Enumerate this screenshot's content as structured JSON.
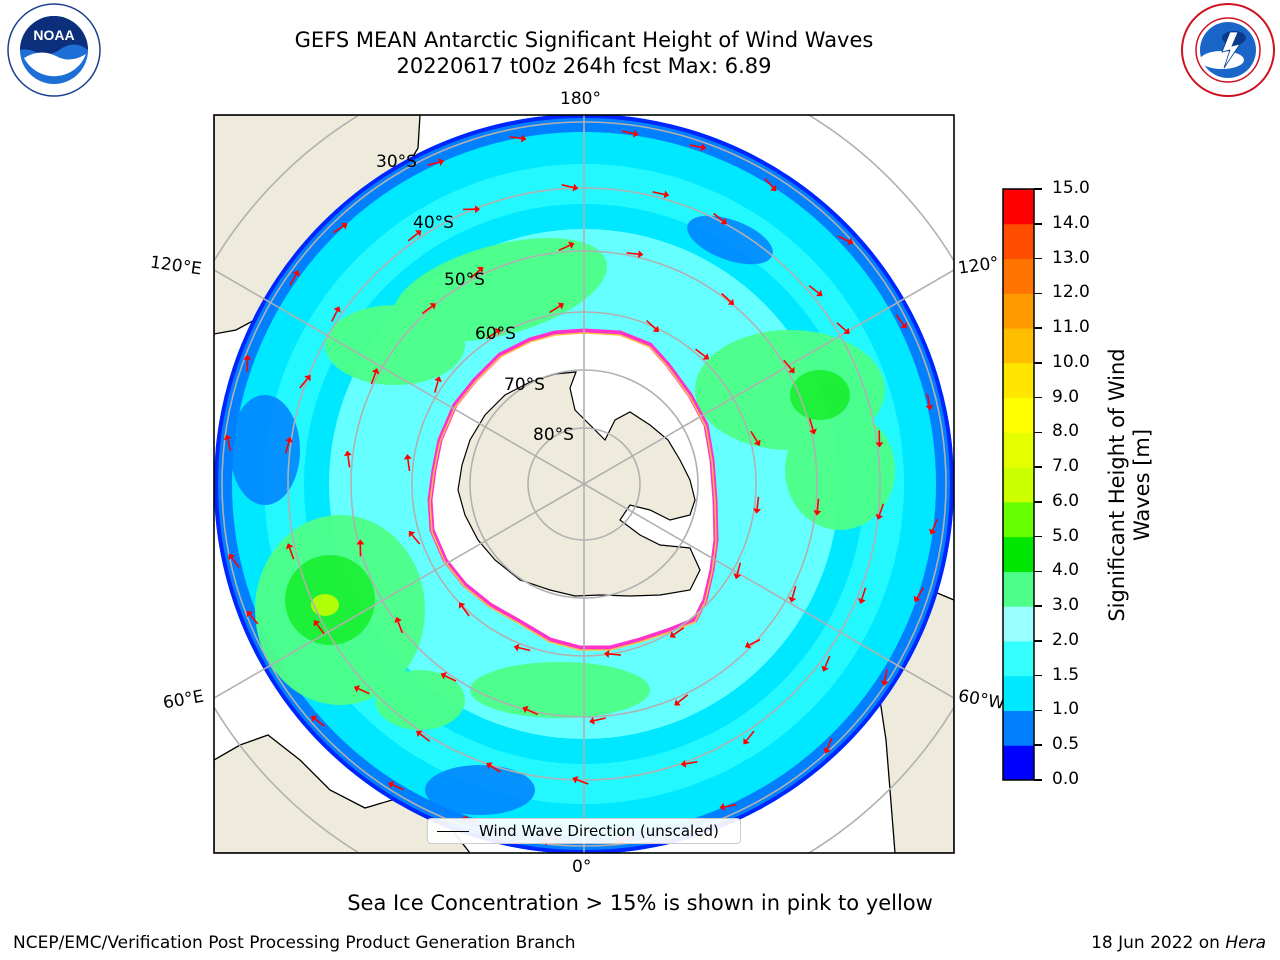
{
  "title": {
    "line1": "GEFS MEAN Antarctic Significant Height of Wind Waves",
    "line2": "20220617 t00z 264h fcst   Max: 6.89"
  },
  "map": {
    "lon_labels": {
      "top": "180°",
      "bottom": "0°",
      "left_upper": "120°E",
      "left_lower": "60°E",
      "right_upper": "120°",
      "right_lower": "60°W"
    },
    "lat_labels": [
      "30°S",
      "40°S",
      "50°S",
      "60°S",
      "70°S",
      "80°S"
    ],
    "colors": {
      "land": "#efebdc",
      "ice": "#ffffff",
      "grid": "#b0b0b0",
      "arrow": "#ff0000",
      "sea_ice_edge": [
        "#ff33cc",
        "#ff66ff",
        "#ffcc33"
      ]
    }
  },
  "legend": {
    "label": "Wind Wave Direction (unscaled)"
  },
  "colorbar": {
    "label": "Significant Height of Wind Waves [m]",
    "label_line1": "Significant Height of Wind",
    "label_line2": "Waves [m]",
    "ticks": [
      "0.0",
      "0.5",
      "1.0",
      "1.5",
      "2.0",
      "3.0",
      "4.0",
      "5.0",
      "6.0",
      "7.0",
      "8.0",
      "9.0",
      "10.0",
      "11.0",
      "12.0",
      "13.0",
      "14.0",
      "15.0"
    ],
    "colors": [
      "#0000ff",
      "#0080ff",
      "#00e8ff",
      "#33ffff",
      "#99ffff",
      "#4dff88",
      "#00e600",
      "#66ff00",
      "#ccff00",
      "#e6ff00",
      "#ffff00",
      "#ffe600",
      "#ffbf00",
      "#ff9900",
      "#ff7300",
      "#ff4d00",
      "#ff0000"
    ]
  },
  "subtitle": "Sea Ice Concentration > 15% is shown in pink to yellow",
  "footer": {
    "left": "NCEP/EMC/Verification Post Processing Product Generation Branch",
    "right_prefix": "18 Jun 2022 on ",
    "right_host": "Hera"
  },
  "logos": {
    "left": "NOAA",
    "right": "NATIONAL WEATHER SERVICE",
    "left_ring": "NATIONAL OCEANIC AND ATMOSPHERIC ADMINISTRATION · U.S. DEPARTMENT OF COMMERCE"
  }
}
